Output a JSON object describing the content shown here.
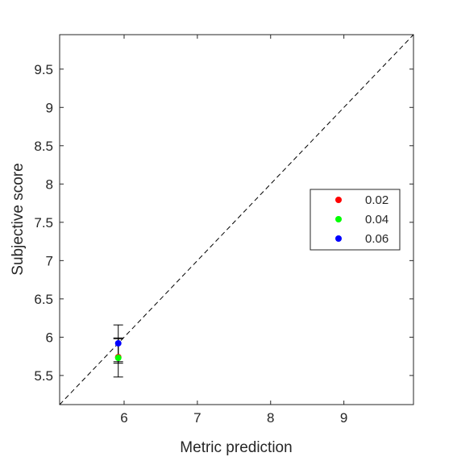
{
  "chart_data": {
    "type": "scatter",
    "title": "",
    "xlabel": "Metric prediction",
    "ylabel": "Subjective score",
    "xlim": [
      5.12,
      9.95
    ],
    "ylim": [
      5.12,
      9.95
    ],
    "x_ticks": [
      6,
      7,
      8,
      9
    ],
    "y_ticks": [
      5.5,
      6,
      6.5,
      7,
      7.5,
      8,
      8.5,
      9,
      9.5
    ],
    "x_tick_labels": [
      "6",
      "7",
      "8",
      "9"
    ],
    "y_tick_labels": [
      "5.5",
      "6",
      "6.5",
      "7",
      "7.5",
      "8",
      "8.5",
      "9",
      "9.5"
    ],
    "grid": false,
    "reference_line": {
      "style": "dashed",
      "from": [
        5.12,
        5.12
      ],
      "to": [
        9.95,
        9.95
      ],
      "color": "#000000"
    },
    "legend_position": "right",
    "series": [
      {
        "name": "0.02",
        "color": "#ff0000",
        "x": 5.92,
        "y": 5.74,
        "err_low": 5.66,
        "err_high": 5.98
      },
      {
        "name": "0.04",
        "color": "#00ff00",
        "x": 5.92,
        "y": 5.73,
        "err_low": 5.48,
        "err_high": 5.99
      },
      {
        "name": "0.06",
        "color": "#0000ff",
        "x": 5.92,
        "y": 5.92,
        "err_low": 5.68,
        "err_high": 6.16
      }
    ]
  }
}
